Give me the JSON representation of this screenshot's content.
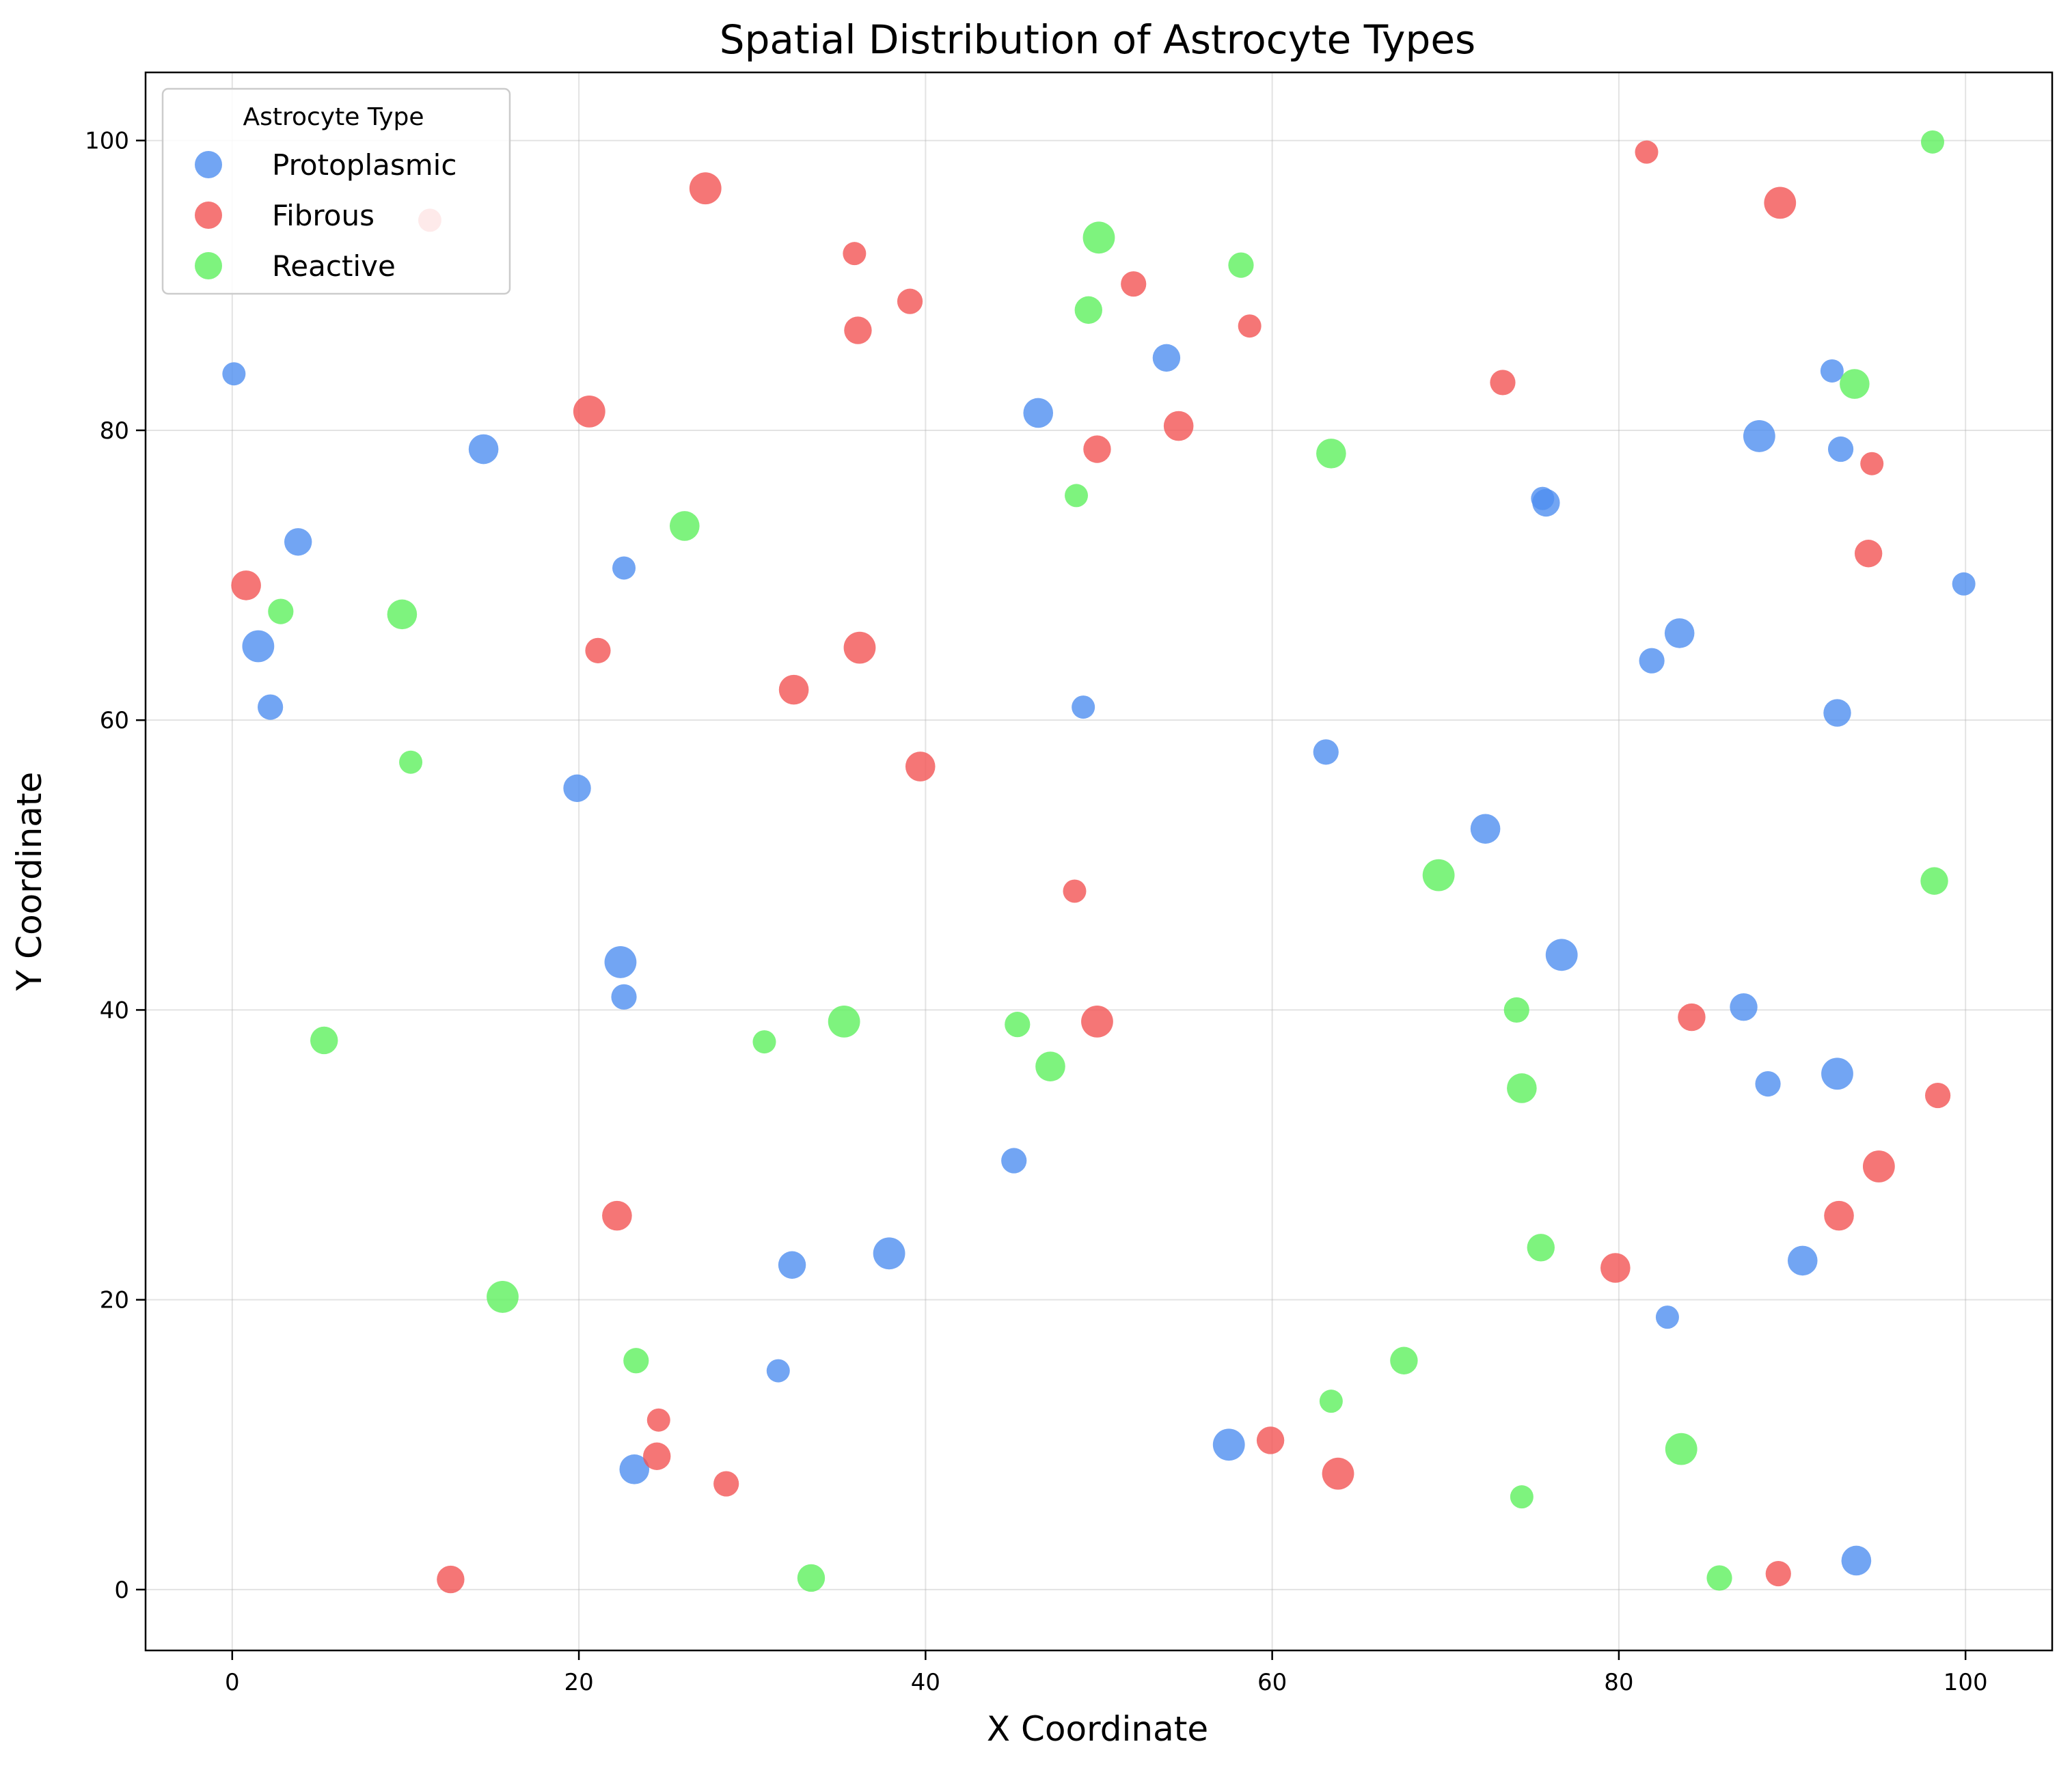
{
  "chart_data": {
    "type": "scatter",
    "title": "Spatial Distribution of Astrocyte Types",
    "xlabel": "X Coordinate",
    "ylabel": "Y Coordinate",
    "xlim": [
      -5,
      105
    ],
    "ylim": [
      -4.2,
      104.7
    ],
    "xticks": [
      0,
      20,
      40,
      60,
      80,
      100
    ],
    "yticks": [
      0,
      20,
      40,
      60,
      80,
      100
    ],
    "grid": true,
    "legend": {
      "title": "Astrocyte Type",
      "placement": "top-left"
    },
    "series": [
      {
        "name": "Protoplasmic",
        "color": "#4f8ef0",
        "points": [
          [
            0.1,
            83.9
          ],
          [
            3.8,
            72.3
          ],
          [
            1.5,
            65.1
          ],
          [
            2.2,
            60.9
          ],
          [
            14.5,
            78.7
          ],
          [
            22.6,
            70.5
          ],
          [
            19.9,
            55.3
          ],
          [
            22.4,
            43.3
          ],
          [
            22.6,
            40.9
          ],
          [
            23.2,
            8.3
          ],
          [
            31.5,
            15.1
          ],
          [
            32.3,
            22.4
          ],
          [
            37.9,
            23.2
          ],
          [
            45.1,
            29.6
          ],
          [
            46.5,
            81.2
          ],
          [
            49.1,
            60.9
          ],
          [
            53.9,
            85.0
          ],
          [
            57.5,
            10.0
          ],
          [
            63.1,
            57.8
          ],
          [
            72.3,
            52.5
          ],
          [
            75.6,
            75.3
          ],
          [
            75.8,
            75.0
          ],
          [
            76.7,
            43.8
          ],
          [
            81.9,
            64.1
          ],
          [
            83.5,
            66.0
          ],
          [
            82.8,
            18.8
          ],
          [
            87.2,
            40.2
          ],
          [
            88.1,
            79.6
          ],
          [
            88.6,
            34.9
          ],
          [
            90.6,
            22.7
          ],
          [
            92.3,
            84.1
          ],
          [
            92.6,
            60.5
          ],
          [
            92.6,
            35.6
          ],
          [
            92.8,
            78.7
          ],
          [
            93.7,
            2.0
          ],
          [
            99.9,
            69.4
          ]
        ]
      },
      {
        "name": "Fibrous",
        "color": "#f25454",
        "points": [
          [
            0.8,
            69.3
          ],
          [
            11.4,
            94.5
          ],
          [
            12.6,
            0.7
          ],
          [
            20.6,
            81.3
          ],
          [
            21.1,
            64.8
          ],
          [
            22.2,
            25.8
          ],
          [
            24.6,
            11.7
          ],
          [
            24.5,
            9.2
          ],
          [
            27.3,
            96.7
          ],
          [
            28.5,
            7.3
          ],
          [
            32.4,
            62.1
          ],
          [
            35.9,
            92.2
          ],
          [
            36.1,
            86.9
          ],
          [
            36.2,
            65.0
          ],
          [
            39.1,
            88.9
          ],
          [
            39.7,
            56.8
          ],
          [
            48.6,
            48.2
          ],
          [
            49.9,
            78.7
          ],
          [
            49.9,
            39.2
          ],
          [
            52.0,
            90.1
          ],
          [
            54.6,
            80.3
          ],
          [
            58.7,
            87.2
          ],
          [
            59.9,
            10.3
          ],
          [
            63.8,
            8.0
          ],
          [
            73.3,
            83.3
          ],
          [
            79.8,
            22.2
          ],
          [
            81.6,
            99.2
          ],
          [
            84.2,
            39.5
          ],
          [
            89.3,
            95.7
          ],
          [
            89.2,
            1.1
          ],
          [
            92.7,
            25.8
          ],
          [
            94.6,
            77.7
          ],
          [
            94.4,
            71.5
          ],
          [
            95.0,
            29.2
          ],
          [
            98.4,
            34.1
          ]
        ]
      },
      {
        "name": "Reactive",
        "color": "#5ef05e",
        "points": [
          [
            2.8,
            67.5
          ],
          [
            9.8,
            67.3
          ],
          [
            10.3,
            57.1
          ],
          [
            5.3,
            37.9
          ],
          [
            15.6,
            20.2
          ],
          [
            23.3,
            15.8
          ],
          [
            26.1,
            73.4
          ],
          [
            30.7,
            37.8
          ],
          [
            33.4,
            0.8
          ],
          [
            35.3,
            39.2
          ],
          [
            45.3,
            39.0
          ],
          [
            47.2,
            36.1
          ],
          [
            48.7,
            75.5
          ],
          [
            49.4,
            88.3
          ],
          [
            50.0,
            93.3
          ],
          [
            58.2,
            91.4
          ],
          [
            63.4,
            78.4
          ],
          [
            63.4,
            13.0
          ],
          [
            67.6,
            15.8
          ],
          [
            69.6,
            49.3
          ],
          [
            74.1,
            40.0
          ],
          [
            74.4,
            34.6
          ],
          [
            74.4,
            6.4
          ],
          [
            75.5,
            23.6
          ],
          [
            83.6,
            9.7
          ],
          [
            85.8,
            0.8
          ],
          [
            93.6,
            83.2
          ],
          [
            98.1,
            99.9
          ],
          [
            98.2,
            48.9
          ]
        ]
      }
    ]
  }
}
